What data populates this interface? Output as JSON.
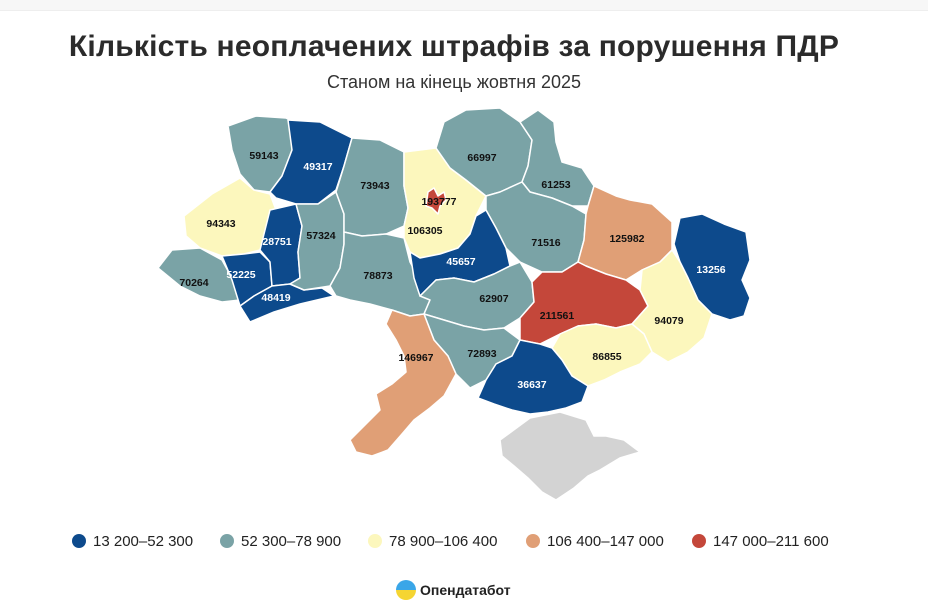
{
  "header": {
    "title": "Кількість неоплачених штрафів за порушення ПДР",
    "subtitle": "Станом на кінець жовтня 2025"
  },
  "legend": [
    {
      "label": "13 200–52 300",
      "color": "#0d4a8c"
    },
    {
      "label": "52 300–78 900",
      "color": "#7aa3a6"
    },
    {
      "label": "78 900–106 400",
      "color": "#fcf7bd"
    },
    {
      "label": "106 400–147 000",
      "color": "#e09f76"
    },
    {
      "label": "147 000–211 600",
      "color": "#c4473a"
    }
  ],
  "regions": [
    {
      "id": "volyn",
      "value": "59143",
      "class": 1
    },
    {
      "id": "rivne",
      "value": "49317",
      "class": 0
    },
    {
      "id": "lviv",
      "value": "94343",
      "class": 2
    },
    {
      "id": "zakarpattia",
      "value": "70264",
      "class": 1
    },
    {
      "id": "ivano-frankivsk",
      "value": "52225",
      "class": 0
    },
    {
      "id": "ternopil",
      "value": "28751",
      "class": 0
    },
    {
      "id": "chernivtsi",
      "value": "48419",
      "class": 0
    },
    {
      "id": "khmelnytskyi",
      "value": "57324",
      "class": 1
    },
    {
      "id": "zhytomyr",
      "value": "73943",
      "class": 1
    },
    {
      "id": "vinnytsia",
      "value": "78873",
      "class": 1
    },
    {
      "id": "kyiv-oblast",
      "value": "106305",
      "class": 2
    },
    {
      "id": "kyiv-city",
      "value": "193777",
      "class": 4
    },
    {
      "id": "chernihiv",
      "value": "66997",
      "class": 1
    },
    {
      "id": "sumy",
      "value": "61253",
      "class": 1
    },
    {
      "id": "poltava",
      "value": "71516",
      "class": 1
    },
    {
      "id": "cherkasy",
      "value": "45657",
      "class": 0
    },
    {
      "id": "kirovohrad",
      "value": "62907",
      "class": 1
    },
    {
      "id": "kharkiv",
      "value": "125982",
      "class": 3
    },
    {
      "id": "luhansk",
      "value": "13256",
      "class": 0
    },
    {
      "id": "dnipropetrovsk",
      "value": "211561",
      "class": 4
    },
    {
      "id": "donetsk",
      "value": "94079",
      "class": 2
    },
    {
      "id": "zaporizhzhia",
      "value": "86855",
      "class": 2
    },
    {
      "id": "mykolaiv",
      "value": "72893",
      "class": 1
    },
    {
      "id": "odesa",
      "value": "146967",
      "class": 3
    },
    {
      "id": "kherson",
      "value": "36637",
      "class": 0
    }
  ],
  "brand": {
    "name": "Опендатабот"
  }
}
